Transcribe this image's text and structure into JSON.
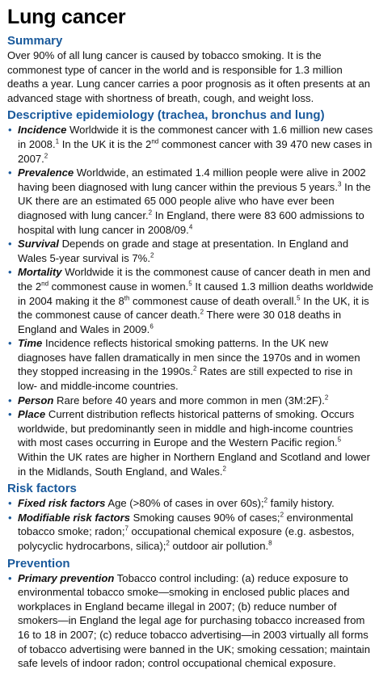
{
  "title": "Lung cancer",
  "summary": {
    "heading": "Summary",
    "text": "Over 90% of all lung cancer is caused by tobacco smoking. It is the commonest type of cancer in the world and is responsible for 1.3 million deaths a year. Lung cancer carries a poor prognosis as it often presents at an advanced stage with shortness of breath, cough, and weight loss."
  },
  "epi": {
    "heading": "Descriptive epidemiology (trachea, bronchus and lung)",
    "items": [
      {
        "term": "Incidence",
        "segs": [
          " Worldwide it is the commonest cancer with 1.6 million new cases in 2008.",
          {
            "sup": "1"
          },
          " In the UK it is the 2",
          {
            "sup": "nd"
          },
          " commonest cancer with 39 470 new cases in 2007.",
          {
            "sup": "2"
          }
        ]
      },
      {
        "term": "Prevalence",
        "segs": [
          " Worldwide, an estimated 1.4 million people were alive in 2002 having been diagnosed with lung cancer within the previous 5 years.",
          {
            "sup": "3"
          },
          " In the UK there are an estimated 65 000 people alive who have ever been diagnosed with lung cancer.",
          {
            "sup": "2"
          },
          " In England, there were 83 600 admissions to hospital with lung cancer in 2008/09.",
          {
            "sup": "4"
          }
        ]
      },
      {
        "term": "Survival",
        "segs": [
          " Depends on grade and stage at presentation. In England and Wales 5-year survival is 7%.",
          {
            "sup": "2"
          }
        ]
      },
      {
        "term": "Mortality",
        "segs": [
          " Worldwide it is the commonest cause of cancer death in men and the 2",
          {
            "sup": "nd"
          },
          " commonest cause in women.",
          {
            "sup": "5"
          },
          " It caused 1.3 million deaths worldwide in 2004 making it the 8",
          {
            "sup": "th"
          },
          " commonest cause of death overall.",
          {
            "sup": "5"
          },
          " In the UK, it is the commonest cause of cancer death.",
          {
            "sup": "2"
          },
          " There were 30 018 deaths in England and Wales in 2009.",
          {
            "sup": "6"
          }
        ]
      },
      {
        "term": "Time",
        "segs": [
          " Incidence reflects historical smoking patterns. In the UK new diagnoses have fallen dramatically in men since the 1970s and in women they stopped increasing in the 1990s.",
          {
            "sup": "2"
          },
          " Rates are still expected to rise in low- and middle-income countries."
        ]
      },
      {
        "term": "Person",
        "segs": [
          " Rare before 40 years and more common in men (3M:2F).",
          {
            "sup": "2"
          }
        ]
      },
      {
        "term": "Place",
        "segs": [
          " Current distribution reflects historical patterns of smoking. Occurs worldwide, but predominantly seen in middle and high-income countries with most cases occurring in Europe and the Western Pacific region.",
          {
            "sup": "5"
          },
          " Within the UK rates are higher in Northern England and Scotland and lower in the Midlands, South England, and Wales.",
          {
            "sup": "2"
          }
        ]
      }
    ]
  },
  "risk": {
    "heading": "Risk factors",
    "items": [
      {
        "term": "Fixed risk factors",
        "segs": [
          " Age (>80% of cases in over 60s);",
          {
            "sup": "2"
          },
          " family history."
        ]
      },
      {
        "term": "Modifiable risk factors",
        "segs": [
          " Smoking causes 90% of cases;",
          {
            "sup": "2"
          },
          " environmental tobacco smoke; radon;",
          {
            "sup": "7"
          },
          " occupational chemical exposure (e.g. asbestos, polycyclic hydrocarbons, silica);",
          {
            "sup": "2"
          },
          " outdoor air pollution.",
          {
            "sup": "8"
          }
        ]
      }
    ]
  },
  "prevention": {
    "heading": "Prevention",
    "items": [
      {
        "term": "Primary prevention",
        "segs": [
          " Tobacco control including: (a) reduce exposure to environmental tobacco smoke—smoking in enclosed public places and workplaces in England became illegal in 2007; (b) reduce number of smokers—in England the legal age for purchasing tobacco increased from 16 to 18 in 2007; (c) reduce tobacco advertising—in 2003 virtually all forms of tobacco advertising were banned in the UK; smoking cessation; maintain safe levels of indoor radon; control occupational chemical exposure."
        ]
      }
    ]
  }
}
